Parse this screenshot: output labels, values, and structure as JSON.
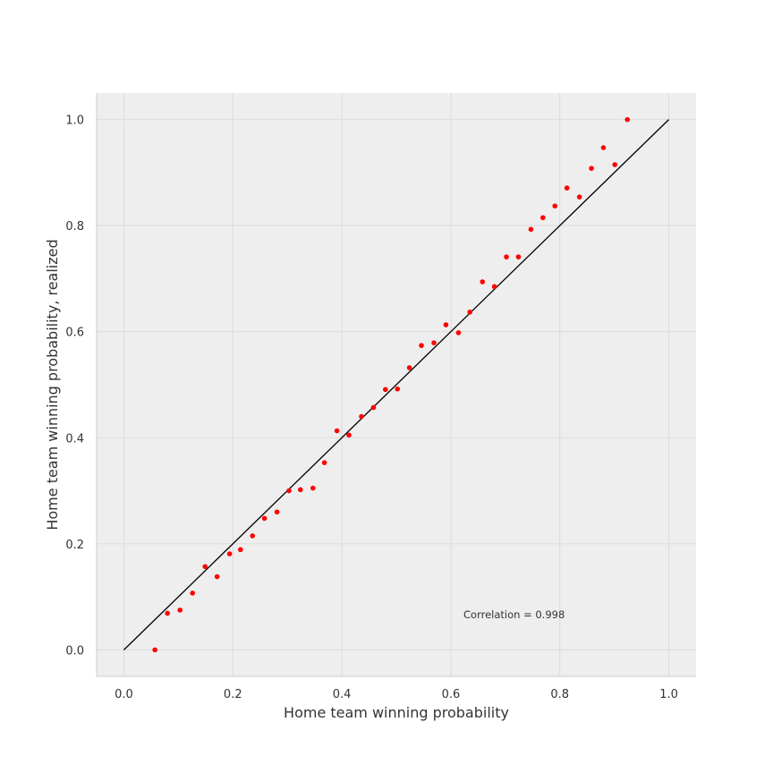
{
  "chart_data": {
    "type": "scatter",
    "title": "",
    "xlabel": "Home team winning probability",
    "ylabel": "Home team winning probability, realized",
    "xlim": [
      -0.05,
      1.05
    ],
    "ylim": [
      -0.05,
      1.05
    ],
    "xticks": [
      "0.0",
      "0.2",
      "0.4",
      "0.6",
      "0.8",
      "1.0"
    ],
    "yticks": [
      "0.0",
      "0.2",
      "0.4",
      "0.6",
      "0.8",
      "1.0"
    ],
    "grid": true,
    "background_color": "#eeeeee",
    "point_color": "#ff0000",
    "reference_line": {
      "x": [
        0.0,
        1.0
      ],
      "y": [
        0.0,
        1.0
      ],
      "color": "#000000"
    },
    "annotation": "Correlation = 0.998",
    "points": [
      {
        "x": 0.057,
        "y": 0.0
      },
      {
        "x": 0.08,
        "y": 0.069
      },
      {
        "x": 0.103,
        "y": 0.075
      },
      {
        "x": 0.126,
        "y": 0.107
      },
      {
        "x": 0.149,
        "y": 0.157
      },
      {
        "x": 0.171,
        "y": 0.138
      },
      {
        "x": 0.194,
        "y": 0.181
      },
      {
        "x": 0.214,
        "y": 0.189
      },
      {
        "x": 0.236,
        "y": 0.215
      },
      {
        "x": 0.258,
        "y": 0.248
      },
      {
        "x": 0.281,
        "y": 0.26
      },
      {
        "x": 0.303,
        "y": 0.3
      },
      {
        "x": 0.324,
        "y": 0.302
      },
      {
        "x": 0.347,
        "y": 0.305
      },
      {
        "x": 0.368,
        "y": 0.353
      },
      {
        "x": 0.391,
        "y": 0.413
      },
      {
        "x": 0.413,
        "y": 0.405
      },
      {
        "x": 0.436,
        "y": 0.44
      },
      {
        "x": 0.458,
        "y": 0.457
      },
      {
        "x": 0.48,
        "y": 0.491
      },
      {
        "x": 0.502,
        "y": 0.492
      },
      {
        "x": 0.524,
        "y": 0.532
      },
      {
        "x": 0.546,
        "y": 0.574
      },
      {
        "x": 0.569,
        "y": 0.579
      },
      {
        "x": 0.591,
        "y": 0.613
      },
      {
        "x": 0.614,
        "y": 0.598
      },
      {
        "x": 0.635,
        "y": 0.637
      },
      {
        "x": 0.658,
        "y": 0.694
      },
      {
        "x": 0.68,
        "y": 0.685
      },
      {
        "x": 0.702,
        "y": 0.741
      },
      {
        "x": 0.724,
        "y": 0.741
      },
      {
        "x": 0.747,
        "y": 0.793
      },
      {
        "x": 0.769,
        "y": 0.815
      },
      {
        "x": 0.791,
        "y": 0.837
      },
      {
        "x": 0.813,
        "y": 0.871
      },
      {
        "x": 0.836,
        "y": 0.854
      },
      {
        "x": 0.858,
        "y": 0.908
      },
      {
        "x": 0.88,
        "y": 0.947
      },
      {
        "x": 0.901,
        "y": 0.915
      },
      {
        "x": 0.924,
        "y": 1.0
      }
    ]
  }
}
